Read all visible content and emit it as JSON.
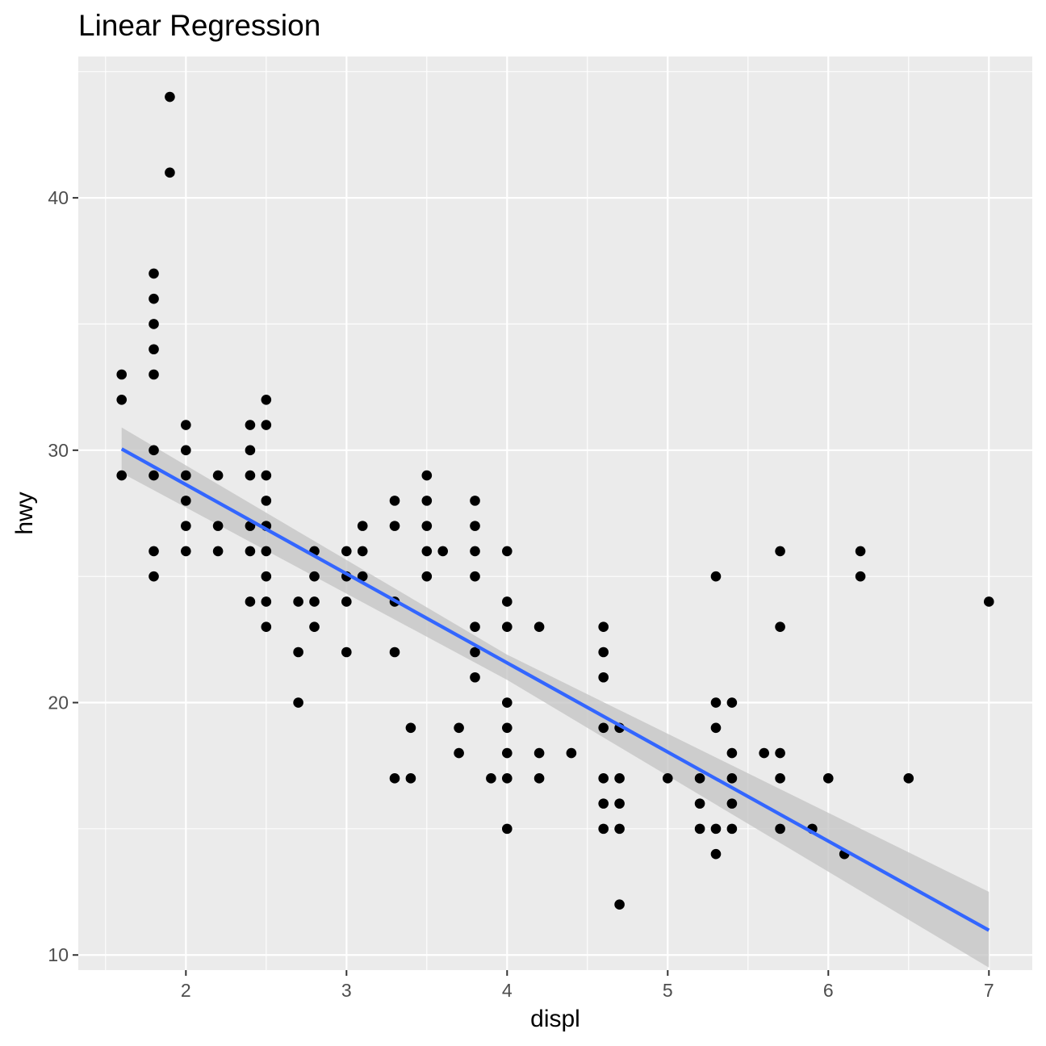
{
  "chart_data": {
    "type": "scatter",
    "title": "Linear Regression",
    "xlabel": "displ",
    "ylabel": "hwy",
    "xlim": [
      1.33,
      7.27
    ],
    "ylim": [
      9.4,
      45.6
    ],
    "x_ticks": [
      2,
      3,
      4,
      5,
      6,
      7
    ],
    "y_ticks": [
      10,
      20,
      30,
      40
    ],
    "grid": true,
    "colors": {
      "panel": "#ebebeb",
      "grid": "#ffffff",
      "point": "#000000",
      "fit_line": "#3366ff",
      "ribbon": "#c3c3c3",
      "tick_label": "#4d4d4d",
      "tick_mark": "#333333"
    },
    "series": [
      {
        "points": [
          [
            1.6,
            33
          ],
          [
            1.6,
            32
          ],
          [
            1.6,
            29
          ],
          [
            1.8,
            37
          ],
          [
            1.8,
            36
          ],
          [
            1.8,
            35
          ],
          [
            1.8,
            34
          ],
          [
            1.8,
            33
          ],
          [
            1.8,
            30
          ],
          [
            1.8,
            29
          ],
          [
            1.8,
            26
          ],
          [
            1.8,
            25
          ],
          [
            1.9,
            44
          ],
          [
            1.9,
            41
          ],
          [
            2.0,
            31
          ],
          [
            2.0,
            30
          ],
          [
            2.0,
            29
          ],
          [
            2.0,
            28
          ],
          [
            2.0,
            27
          ],
          [
            2.0,
            26
          ],
          [
            2.2,
            29
          ],
          [
            2.2,
            27
          ],
          [
            2.2,
            26
          ],
          [
            2.4,
            31
          ],
          [
            2.4,
            30
          ],
          [
            2.4,
            29
          ],
          [
            2.4,
            27
          ],
          [
            2.4,
            26
          ],
          [
            2.4,
            24
          ],
          [
            2.5,
            32
          ],
          [
            2.5,
            31
          ],
          [
            2.5,
            29
          ],
          [
            2.5,
            28
          ],
          [
            2.5,
            27
          ],
          [
            2.5,
            26
          ],
          [
            2.5,
            25
          ],
          [
            2.5,
            24
          ],
          [
            2.5,
            23
          ],
          [
            2.7,
            24
          ],
          [
            2.7,
            22
          ],
          [
            2.7,
            20
          ],
          [
            2.8,
            26
          ],
          [
            2.8,
            25
          ],
          [
            2.8,
            24
          ],
          [
            2.8,
            23
          ],
          [
            3.0,
            26
          ],
          [
            3.0,
            25
          ],
          [
            3.0,
            24
          ],
          [
            3.0,
            22
          ],
          [
            3.1,
            27
          ],
          [
            3.1,
            26
          ],
          [
            3.1,
            25
          ],
          [
            3.3,
            28
          ],
          [
            3.3,
            27
          ],
          [
            3.3,
            24
          ],
          [
            3.3,
            22
          ],
          [
            3.3,
            17
          ],
          [
            3.4,
            19
          ],
          [
            3.4,
            17
          ],
          [
            3.5,
            29
          ],
          [
            3.5,
            28
          ],
          [
            3.5,
            27
          ],
          [
            3.5,
            26
          ],
          [
            3.5,
            25
          ],
          [
            3.6,
            26
          ],
          [
            3.7,
            19
          ],
          [
            3.7,
            18
          ],
          [
            3.8,
            28
          ],
          [
            3.8,
            27
          ],
          [
            3.8,
            26
          ],
          [
            3.8,
            25
          ],
          [
            3.8,
            23
          ],
          [
            3.8,
            22
          ],
          [
            3.8,
            21
          ],
          [
            3.9,
            17
          ],
          [
            4.0,
            26
          ],
          [
            4.0,
            24
          ],
          [
            4.0,
            23
          ],
          [
            4.0,
            20
          ],
          [
            4.0,
            19
          ],
          [
            4.0,
            18
          ],
          [
            4.0,
            17
          ],
          [
            4.0,
            15
          ],
          [
            4.2,
            23
          ],
          [
            4.2,
            18
          ],
          [
            4.2,
            17
          ],
          [
            4.4,
            18
          ],
          [
            4.6,
            23
          ],
          [
            4.6,
            22
          ],
          [
            4.6,
            21
          ],
          [
            4.6,
            19
          ],
          [
            4.6,
            17
          ],
          [
            4.6,
            16
          ],
          [
            4.6,
            15
          ],
          [
            4.7,
            19
          ],
          [
            4.7,
            17
          ],
          [
            4.7,
            16
          ],
          [
            4.7,
            15
          ],
          [
            4.7,
            12
          ],
          [
            5.0,
            17
          ],
          [
            5.2,
            17
          ],
          [
            5.2,
            16
          ],
          [
            5.2,
            15
          ],
          [
            5.3,
            25
          ],
          [
            5.3,
            20
          ],
          [
            5.3,
            19
          ],
          [
            5.3,
            15
          ],
          [
            5.3,
            14
          ],
          [
            5.4,
            20
          ],
          [
            5.4,
            18
          ],
          [
            5.4,
            17
          ],
          [
            5.4,
            16
          ],
          [
            5.4,
            15
          ],
          [
            5.6,
            18
          ],
          [
            5.7,
            26
          ],
          [
            5.7,
            23
          ],
          [
            5.7,
            18
          ],
          [
            5.7,
            17
          ],
          [
            5.7,
            15
          ],
          [
            5.9,
            15
          ],
          [
            6.0,
            17
          ],
          [
            6.1,
            14
          ],
          [
            6.2,
            26
          ],
          [
            6.2,
            25
          ],
          [
            6.5,
            17
          ],
          [
            7.0,
            24
          ]
        ]
      }
    ],
    "fit": {
      "method": "lm",
      "x_range": [
        1.6,
        7.0
      ],
      "line": [
        [
          1.6,
          30.05
        ],
        [
          7.0,
          10.98
        ]
      ],
      "ribbon_upper": [
        [
          1.6,
          30.9
        ],
        [
          4.0,
          21.9
        ],
        [
          7.0,
          12.5
        ]
      ],
      "ribbon_lower": [
        [
          1.6,
          29.1
        ],
        [
          4.0,
          20.9
        ],
        [
          7.0,
          9.5
        ]
      ]
    }
  }
}
